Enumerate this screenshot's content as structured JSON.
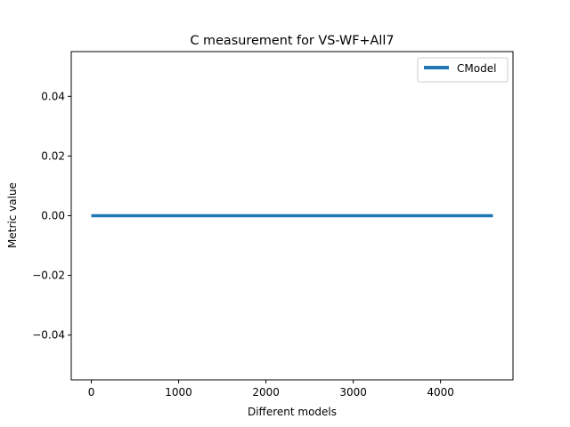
{
  "chart_data": {
    "type": "line",
    "title": "C measurement for VS-WF+All7",
    "xlabel": "Different models",
    "ylabel": "Metric value",
    "xlim": [
      -230,
      4830
    ],
    "ylim": [
      -0.055,
      0.055
    ],
    "xticks": [
      0,
      1000,
      2000,
      3000,
      4000
    ],
    "xtick_labels": [
      "0",
      "1000",
      "2000",
      "3000",
      "4000"
    ],
    "yticks": [
      -0.04,
      -0.02,
      0.0,
      0.02,
      0.04
    ],
    "ytick_labels": [
      "−0.04",
      "−0.02",
      "0.00",
      "0.02",
      "0.04"
    ],
    "grid": false,
    "legend_position": "top-right",
    "series": [
      {
        "name": "CModel",
        "color": "#1f77b4",
        "x": [
          0,
          4600
        ],
        "y": [
          0.0,
          0.0
        ]
      }
    ]
  }
}
